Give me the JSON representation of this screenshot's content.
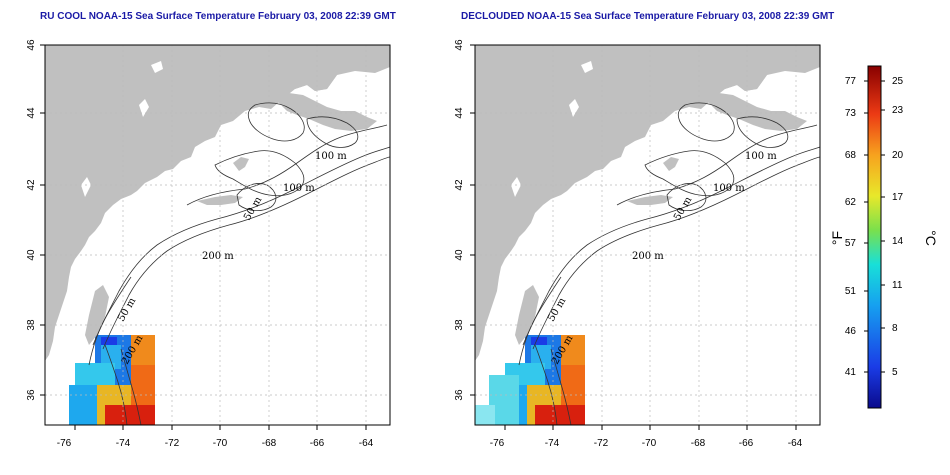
{
  "titles": {
    "left": "RU COOL NOAA-15 Sea Surface Temperature February 03, 2008 22:39 GMT",
    "right": "DECLOUDED NOAA-15 Sea Surface Temperature February 03, 2008 22:39 GMT"
  },
  "axes": {
    "x_ticks": [
      "-76",
      "-74",
      "-72",
      "-70",
      "-68",
      "-66",
      "-64"
    ],
    "y_ticks": [
      "36",
      "38",
      "40",
      "42",
      "44",
      "46"
    ]
  },
  "contour_labels": [
    "100 m",
    "100 m",
    "50 m",
    "200 m",
    "50 m",
    "200 m"
  ],
  "colorbar": {
    "fahrenheit_ticks": [
      "77",
      "73",
      "68",
      "62",
      "57",
      "51",
      "46",
      "41"
    ],
    "celsius_ticks": [
      "25",
      "23",
      "20",
      "17",
      "14",
      "11",
      "8",
      "5"
    ],
    "fahrenheit_unit": "°F",
    "celsius_unit": "°C"
  },
  "colors": {
    "land": "#c0c0c0",
    "title": "#1a1aa6",
    "gridline": "#bbbbbb",
    "contour": "#333333"
  }
}
